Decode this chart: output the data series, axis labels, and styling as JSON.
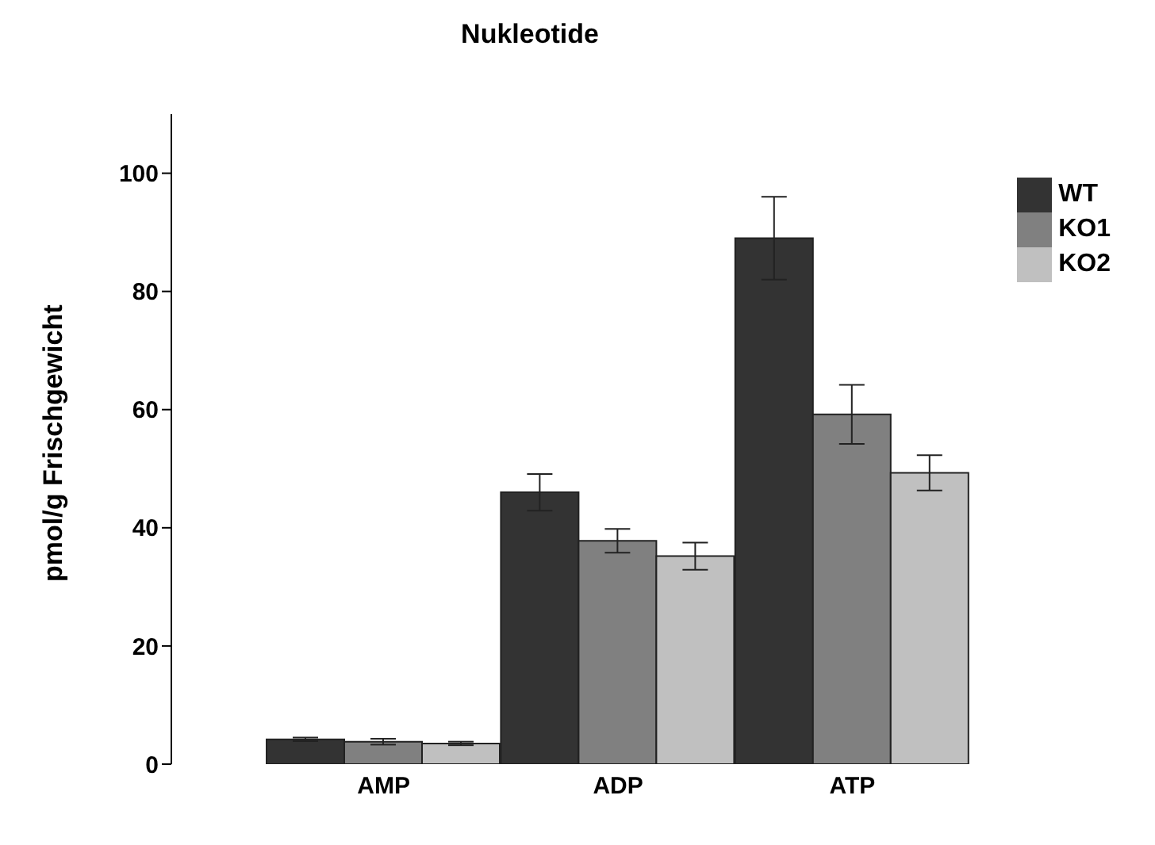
{
  "chart_data": {
    "type": "bar",
    "title": "Nukleotide",
    "ylabel": "pmol/g Frischgewicht",
    "categories": [
      "AMP",
      "ADP",
      "ATP"
    ],
    "series": [
      {
        "name": "WT",
        "color": "#333333",
        "values": [
          4.2,
          46,
          89
        ],
        "errors": [
          0.3,
          3.1,
          7
        ]
      },
      {
        "name": "KO1",
        "color": "#808080",
        "values": [
          3.8,
          37.8,
          59.2
        ],
        "errors": [
          0.5,
          2,
          5
        ]
      },
      {
        "name": "KO2",
        "color": "#c0c0c0",
        "values": [
          3.5,
          35.2,
          49.3
        ],
        "errors": [
          0.3,
          2.3,
          3
        ]
      }
    ],
    "ylim": [
      0,
      110
    ],
    "yticks": [
      0,
      20,
      40,
      60,
      80,
      100
    ],
    "legend": "right"
  }
}
